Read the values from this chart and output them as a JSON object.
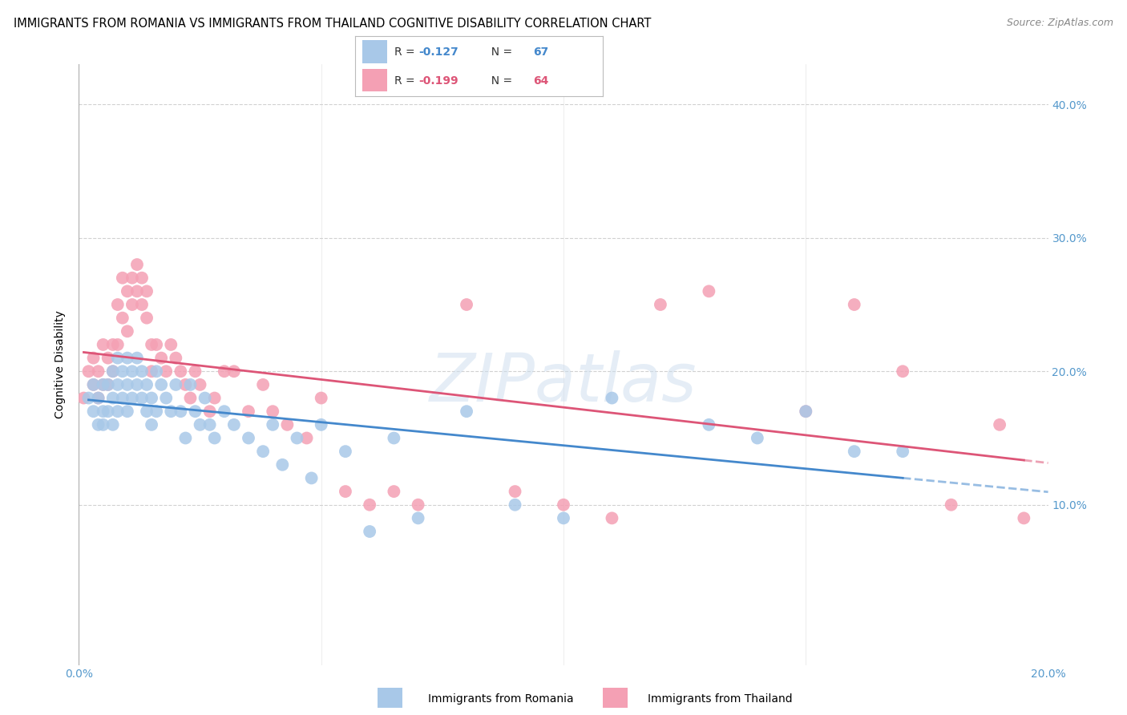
{
  "title": "IMMIGRANTS FROM ROMANIA VS IMMIGRANTS FROM THAILAND COGNITIVE DISABILITY CORRELATION CHART",
  "source": "Source: ZipAtlas.com",
  "ylabel": "Cognitive Disability",
  "xlim": [
    0.0,
    0.2
  ],
  "ylim": [
    -0.02,
    0.43
  ],
  "yticks": [
    0.1,
    0.2,
    0.3,
    0.4
  ],
  "xtick_positions": [
    0.0,
    0.2
  ],
  "xtick_labels": [
    "0.0%",
    "20.0%"
  ],
  "xtick_minor": [
    0.05,
    0.1,
    0.15
  ],
  "romania_R": -0.127,
  "romania_N": 67,
  "thailand_R": -0.199,
  "thailand_N": 64,
  "romania_color": "#a8c8e8",
  "thailand_color": "#f4a0b4",
  "romania_line_color": "#4488cc",
  "thailand_line_color": "#dd5577",
  "romania_x": [
    0.002,
    0.003,
    0.003,
    0.004,
    0.004,
    0.005,
    0.005,
    0.005,
    0.006,
    0.006,
    0.007,
    0.007,
    0.007,
    0.008,
    0.008,
    0.008,
    0.009,
    0.009,
    0.01,
    0.01,
    0.01,
    0.011,
    0.011,
    0.012,
    0.012,
    0.013,
    0.013,
    0.014,
    0.014,
    0.015,
    0.015,
    0.016,
    0.016,
    0.017,
    0.018,
    0.019,
    0.02,
    0.021,
    0.022,
    0.023,
    0.024,
    0.025,
    0.026,
    0.027,
    0.028,
    0.03,
    0.032,
    0.035,
    0.038,
    0.04,
    0.042,
    0.045,
    0.048,
    0.05,
    0.055,
    0.06,
    0.065,
    0.07,
    0.08,
    0.09,
    0.1,
    0.11,
    0.13,
    0.14,
    0.15,
    0.16,
    0.17
  ],
  "romania_y": [
    0.18,
    0.17,
    0.19,
    0.18,
    0.16,
    0.19,
    0.17,
    0.16,
    0.19,
    0.17,
    0.2,
    0.18,
    0.16,
    0.21,
    0.19,
    0.17,
    0.2,
    0.18,
    0.21,
    0.19,
    0.17,
    0.2,
    0.18,
    0.21,
    0.19,
    0.2,
    0.18,
    0.19,
    0.17,
    0.18,
    0.16,
    0.2,
    0.17,
    0.19,
    0.18,
    0.17,
    0.19,
    0.17,
    0.15,
    0.19,
    0.17,
    0.16,
    0.18,
    0.16,
    0.15,
    0.17,
    0.16,
    0.15,
    0.14,
    0.16,
    0.13,
    0.15,
    0.12,
    0.16,
    0.14,
    0.08,
    0.15,
    0.09,
    0.17,
    0.1,
    0.09,
    0.18,
    0.16,
    0.15,
    0.17,
    0.14,
    0.14
  ],
  "thailand_x": [
    0.001,
    0.002,
    0.003,
    0.003,
    0.004,
    0.004,
    0.005,
    0.005,
    0.006,
    0.006,
    0.007,
    0.007,
    0.008,
    0.008,
    0.009,
    0.009,
    0.01,
    0.01,
    0.011,
    0.011,
    0.012,
    0.012,
    0.013,
    0.013,
    0.014,
    0.014,
    0.015,
    0.015,
    0.016,
    0.017,
    0.018,
    0.019,
    0.02,
    0.021,
    0.022,
    0.023,
    0.024,
    0.025,
    0.027,
    0.028,
    0.03,
    0.032,
    0.035,
    0.038,
    0.04,
    0.043,
    0.047,
    0.05,
    0.055,
    0.06,
    0.065,
    0.07,
    0.08,
    0.09,
    0.1,
    0.11,
    0.12,
    0.13,
    0.15,
    0.16,
    0.17,
    0.18,
    0.19,
    0.195
  ],
  "thailand_y": [
    0.18,
    0.2,
    0.19,
    0.21,
    0.2,
    0.18,
    0.22,
    0.19,
    0.21,
    0.19,
    0.22,
    0.2,
    0.25,
    0.22,
    0.27,
    0.24,
    0.26,
    0.23,
    0.27,
    0.25,
    0.28,
    0.26,
    0.27,
    0.25,
    0.26,
    0.24,
    0.22,
    0.2,
    0.22,
    0.21,
    0.2,
    0.22,
    0.21,
    0.2,
    0.19,
    0.18,
    0.2,
    0.19,
    0.17,
    0.18,
    0.2,
    0.2,
    0.17,
    0.19,
    0.17,
    0.16,
    0.15,
    0.18,
    0.11,
    0.1,
    0.11,
    0.1,
    0.25,
    0.11,
    0.1,
    0.09,
    0.25,
    0.26,
    0.17,
    0.25,
    0.2,
    0.1,
    0.16,
    0.09
  ],
  "background_color": "#ffffff",
  "grid_color": "#cccccc",
  "title_fontsize": 10.5,
  "tick_color": "#5599cc",
  "watermark": "ZIPatlas",
  "watermark_fontsize": 60,
  "legend_romania_label_R": "R = ",
  "legend_romania_value_R": "-0.127",
  "legend_romania_label_N": "  N = ",
  "legend_romania_value_N": "67",
  "legend_thailand_label_R": "R = ",
  "legend_thailand_value_R": "-0.199",
  "legend_thailand_label_N": "  N = ",
  "legend_thailand_value_N": "64",
  "bottom_legend_romania": "Immigrants from Romania",
  "bottom_legend_thailand": "Immigrants from Thailand"
}
